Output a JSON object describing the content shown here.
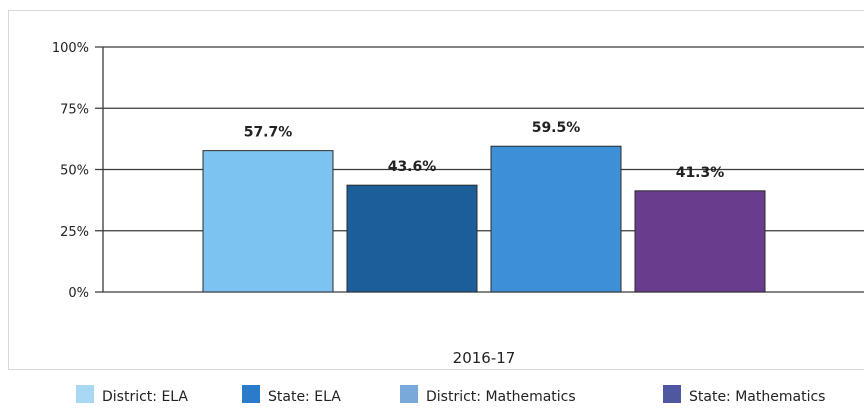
{
  "chart_data": {
    "type": "bar",
    "categories": [
      "2016-17"
    ],
    "series": [
      {
        "name": "District: ELA",
        "values": [
          57.7
        ],
        "label": "57.7%",
        "color": "#7cc3f2"
      },
      {
        "name": "State: ELA",
        "values": [
          43.6
        ],
        "label": "43.6%",
        "color": "#1c5f98"
      },
      {
        "name": "District: Mathematics",
        "values": [
          59.5
        ],
        "label": "59.5%",
        "color": "#3d8fd6"
      },
      {
        "name": "State: Mathematics",
        "values": [
          41.3
        ],
        "label": "41.3%",
        "color": "#6a3c8e"
      }
    ],
    "legend": {
      "placement": "bottom",
      "entries": [
        {
          "label": "District: ELA",
          "color": "#a9d8f5"
        },
        {
          "label": "State: ELA",
          "color": "#2a7bc9"
        },
        {
          "label": "District: Mathematics",
          "color": "#79a9da"
        },
        {
          "label": "State: Mathematics",
          "color": "#4f57a0"
        }
      ]
    },
    "yticks": [
      "0%",
      "25%",
      "50%",
      "75%",
      "100%"
    ],
    "ylim": [
      0,
      100
    ],
    "grid": true,
    "title": "",
    "xlabel": "",
    "ylabel": ""
  }
}
